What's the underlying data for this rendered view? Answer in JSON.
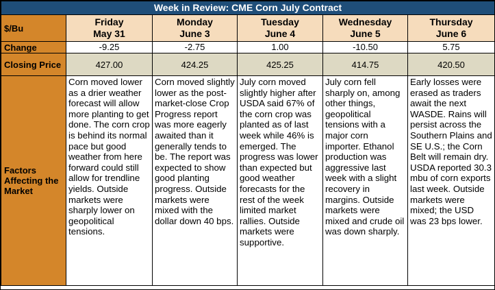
{
  "title": "Week in Review: CME Corn July Contract",
  "unit_label": "$/Bu",
  "row_labels": {
    "change": "Change",
    "closing_price": "Closing Price",
    "factors": "Factors Affecting the Market"
  },
  "days": [
    {
      "day": "Friday",
      "date": "May 31",
      "change": "-9.25",
      "close": "427.00",
      "factors": "Corn moved lower as a drier weather forecast will allow more planting to get done. The corn crop is behind its normal pace but good weather from here forward could still allow for trendline yields. Outside markets were sharply lower on geopolitical tensions."
    },
    {
      "day": "Monday",
      "date": "June 3",
      "change": "-2.75",
      "close": "424.25",
      "factors": "Corn moved slightly lower as the post-market-close Crop Progress report was more eagerly awaited than it generally tends to be. The report was expected to show good planting progress. Outside markets were mixed with the dollar down 40 bps."
    },
    {
      "day": "Tuesday",
      "date": "June 4",
      "change": "1.00",
      "close": "425.25",
      "factors": "July corn moved slightly higher after USDA said 67% of the corn crop was planted as of last week while 46% is emerged. The progress was lower than expected but good weather forecasts for the rest of the week limited market rallies. Outside markets were supportive."
    },
    {
      "day": "Wednesday",
      "date": "June 5",
      "change": "-10.50",
      "close": "414.75",
      "factors": "July corn fell sharply on, among other things, geopolitical tensions with a major corn importer. Ethanol production was aggressive last week with a slight recovery in margins. Outside markets were mixed and crude oil was down sharply."
    },
    {
      "day": "Thursday",
      "date": "June 6",
      "change": "5.75",
      "close": "420.50",
      "factors": "Early losses were erased as traders await the next WASDE. Rains will persist across the Southern Plains and SE U.S.; the Corn Belt will remain dry. USDA reported 30.3 mbu of corn exports last week. Outside markets were mixed; the USD was 23 bps lower."
    }
  ]
}
